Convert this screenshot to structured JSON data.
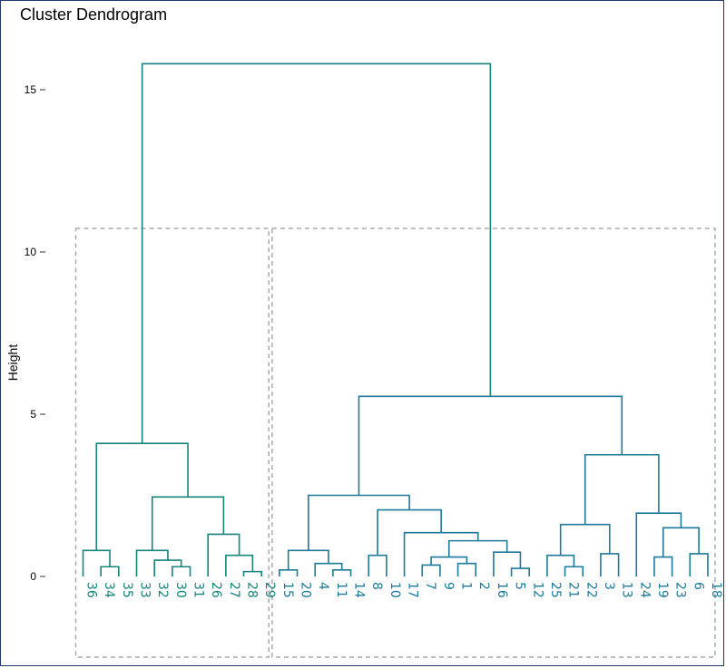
{
  "chart_data": {
    "type": "dendrogram",
    "title": "Cluster Dendrogram",
    "ylabel": "Height",
    "ylim": [
      -2.5,
      16
    ],
    "yticks": [
      0,
      5,
      10,
      15
    ],
    "leaf_order": [
      "36",
      "34",
      "35",
      "33",
      "32",
      "30",
      "31",
      "26",
      "27",
      "28",
      "29",
      "15",
      "20",
      "4",
      "11",
      "14",
      "8",
      "10",
      "17",
      "7",
      "9",
      "1",
      "2",
      "16",
      "5",
      "12",
      "25",
      "21",
      "22",
      "3",
      "13",
      "24",
      "19",
      "23",
      "6",
      "18"
    ],
    "merges": [
      {
        "id": "m1",
        "left": "34",
        "right": "35",
        "height": 0.3
      },
      {
        "id": "m2",
        "left": "36",
        "right": "m1",
        "height": 0.8
      },
      {
        "id": "m3",
        "left": "30",
        "right": "31",
        "height": 0.3
      },
      {
        "id": "m4",
        "left": "32",
        "right": "m3",
        "height": 0.5
      },
      {
        "id": "m5",
        "left": "33",
        "right": "m4",
        "height": 0.8
      },
      {
        "id": "m6",
        "left": "28",
        "right": "29",
        "height": 0.15
      },
      {
        "id": "m7",
        "left": "27",
        "right": "m6",
        "height": 0.65
      },
      {
        "id": "m8",
        "left": "26",
        "right": "m7",
        "height": 1.3
      },
      {
        "id": "m9",
        "left": "m5",
        "right": "m8",
        "height": 2.45
      },
      {
        "id": "m10",
        "left": "m2",
        "right": "m9",
        "height": 4.1
      },
      {
        "id": "m11",
        "left": "15",
        "right": "20",
        "height": 0.2
      },
      {
        "id": "m12",
        "left": "11",
        "right": "14",
        "height": 0.2
      },
      {
        "id": "m13",
        "left": "4",
        "right": "m12",
        "height": 0.4
      },
      {
        "id": "m14",
        "left": "m11",
        "right": "m13",
        "height": 0.8
      },
      {
        "id": "m15",
        "left": "8",
        "right": "10",
        "height": 0.65
      },
      {
        "id": "m16",
        "left": "7",
        "right": "9",
        "height": 0.35
      },
      {
        "id": "m17",
        "left": "1",
        "right": "2",
        "height": 0.4
      },
      {
        "id": "m18",
        "left": "m16",
        "right": "m17",
        "height": 0.6
      },
      {
        "id": "m19",
        "left": "5",
        "right": "12",
        "height": 0.25
      },
      {
        "id": "m20",
        "left": "16",
        "right": "m19",
        "height": 0.75
      },
      {
        "id": "m21",
        "left": "m18",
        "right": "m20",
        "height": 1.1
      },
      {
        "id": "m22",
        "left": "17",
        "right": "m21",
        "height": 1.35
      },
      {
        "id": "m23",
        "left": "m15",
        "right": "m22",
        "height": 2.05
      },
      {
        "id": "m24",
        "left": "m14",
        "right": "m23",
        "height": 2.5
      },
      {
        "id": "m25",
        "left": "21",
        "right": "22",
        "height": 0.3
      },
      {
        "id": "m26",
        "left": "25",
        "right": "m25",
        "height": 0.65
      },
      {
        "id": "m27",
        "left": "3",
        "right": "13",
        "height": 0.7
      },
      {
        "id": "m28",
        "left": "m26",
        "right": "m27",
        "height": 1.6
      },
      {
        "id": "m29",
        "left": "19",
        "right": "23",
        "height": 0.6
      },
      {
        "id": "m30",
        "left": "6",
        "right": "18",
        "height": 0.7
      },
      {
        "id": "m31",
        "left": "m29",
        "right": "m30",
        "height": 1.5
      },
      {
        "id": "m32",
        "left": "24",
        "right": "m31",
        "height": 1.95
      },
      {
        "id": "m33",
        "left": "m28",
        "right": "m32",
        "height": 3.75
      },
      {
        "id": "m34",
        "left": "m24",
        "right": "m33",
        "height": 5.55
      },
      {
        "id": "m35",
        "left": "m10",
        "right": "m34",
        "height": 15.8
      }
    ],
    "clusters": [
      {
        "members": [
          "36",
          "34",
          "35",
          "33",
          "32",
          "30",
          "31",
          "26",
          "27",
          "28",
          "29"
        ],
        "color": "#16847a"
      },
      {
        "members": [
          "15",
          "20",
          "4",
          "11",
          "14",
          "8",
          "10",
          "17",
          "7",
          "9",
          "1",
          "2",
          "16",
          "5",
          "12",
          "25",
          "21",
          "22",
          "3",
          "13",
          "24",
          "19",
          "23",
          "6",
          "18"
        ],
        "color": "#1f7a9a"
      }
    ],
    "root_color": "#1a8080",
    "box_color": "#aaaaaa",
    "grid": false,
    "legend": "none"
  }
}
